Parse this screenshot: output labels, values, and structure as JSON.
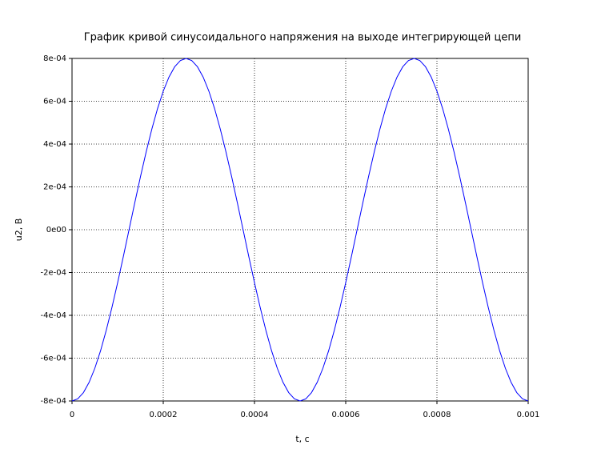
{
  "chart_data": {
    "type": "line",
    "title": "График кривой синусоидального напряжения на выходе интегрирующей цепи",
    "x_label": "t, c",
    "y_label": "u2, В",
    "x": [
      0,
      1.25e-05,
      2.5e-05,
      3.75e-05,
      5e-05,
      6.25e-05,
      7.5e-05,
      8.75e-05,
      0.0001,
      0.0001125,
      0.000125,
      0.0001375,
      0.00015,
      0.0001625,
      0.000175,
      0.0001875,
      0.0002,
      0.0002125,
      0.000225,
      0.0002375,
      0.00025,
      0.0002625,
      0.000275,
      0.0002875,
      0.0003,
      0.0003125,
      0.000325,
      0.0003375,
      0.00035,
      0.0003625,
      0.000375,
      0.0003875,
      0.0004,
      0.0004125,
      0.000425,
      0.0004375,
      0.00045,
      0.0004625,
      0.000475,
      0.0004875,
      0.0005,
      0.0005125,
      0.000525,
      0.0005375,
      0.00055,
      0.0005625,
      0.000575,
      0.0005875,
      0.0006,
      0.0006125,
      0.000625,
      0.0006375,
      0.00065,
      0.0006625,
      0.000675,
      0.0006875,
      0.0007,
      0.0007125,
      0.000725,
      0.0007375,
      0.00075,
      0.0007625,
      0.000775,
      0.0007875,
      0.0008,
      0.0008125,
      0.000825,
      0.0008375,
      0.00085,
      0.0008625,
      0.000875,
      0.0008875,
      0.0009,
      0.0009125,
      0.000925,
      0.0009375,
      0.00095,
      0.0009625,
      0.000975,
      0.0009875,
      0.001
    ],
    "series": [
      {
        "color": "#0000ff",
        "values": [
          -0.0008,
          -0.00079015,
          -0.00076085,
          -0.00071281,
          -0.00064721,
          -0.00056569,
          -0.00047023,
          -0.00036319,
          -0.00024721,
          -0.00012514,
          0,
          0.00012514,
          0.00024721,
          0.00036319,
          0.00047023,
          0.00056569,
          0.00064721,
          0.00071281,
          0.00076085,
          0.00079015,
          0.0008,
          0.00079015,
          0.00076085,
          0.00071281,
          0.00064721,
          0.00056569,
          0.00047023,
          0.00036319,
          0.00024721,
          0.00012514,
          0,
          -0.00012514,
          -0.00024721,
          -0.00036319,
          -0.00047023,
          -0.00056569,
          -0.00064721,
          -0.00071281,
          -0.00076085,
          -0.00079015,
          -0.0008,
          -0.00079015,
          -0.00076085,
          -0.00071281,
          -0.00064721,
          -0.00056569,
          -0.00047023,
          -0.00036319,
          -0.00024721,
          -0.00012514,
          0,
          0.00012514,
          0.00024721,
          0.00036319,
          0.00047023,
          0.00056569,
          0.00064721,
          0.00071281,
          0.00076085,
          0.00079015,
          0.0008,
          0.00079015,
          0.00076085,
          0.00071281,
          0.00064721,
          0.00056569,
          0.00047023,
          0.00036319,
          0.00024721,
          0.00012514,
          0,
          -0.00012514,
          -0.00024721,
          -0.00036319,
          -0.00047023,
          -0.00056569,
          -0.00064721,
          -0.00071281,
          -0.00076085,
          -0.00079015,
          -0.0008
        ]
      }
    ],
    "xlim": [
      0,
      0.001
    ],
    "xticks": [
      0,
      0.0002,
      0.0004,
      0.0006,
      0.0008,
      0.001
    ],
    "ylim": [
      -0.0008,
      0.0008
    ],
    "yticks": [
      {
        "value": -0.0008,
        "label": "-8e-04"
      },
      {
        "value": -0.0006,
        "label": "-6e-04"
      },
      {
        "value": -0.0004,
        "label": "-4e-04"
      },
      {
        "value": -0.0002,
        "label": "-2e-04"
      },
      {
        "value": 0,
        "label": "0e00"
      },
      {
        "value": 0.0002,
        "label": "2e-04"
      },
      {
        "value": 0.0004,
        "label": "4e-04"
      },
      {
        "value": 0.0006,
        "label": "6e-04"
      },
      {
        "value": 0.0008,
        "label": "8e-04"
      }
    ],
    "grid": true
  }
}
